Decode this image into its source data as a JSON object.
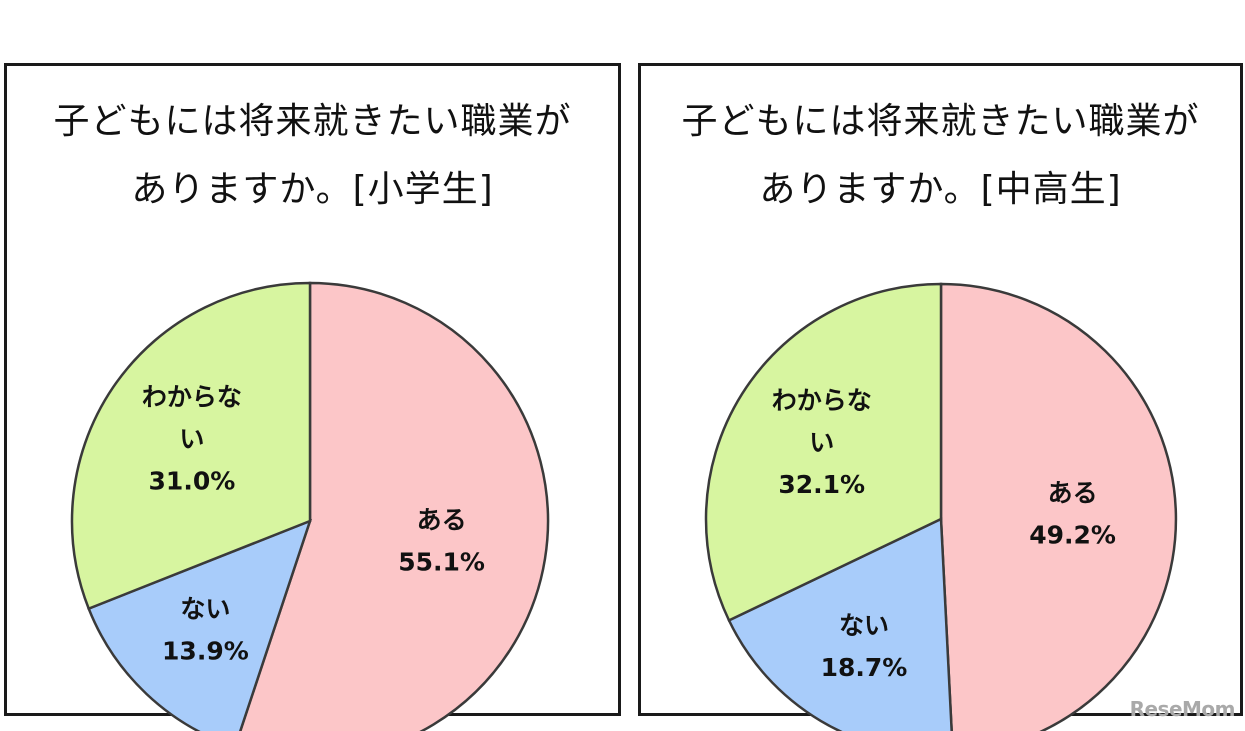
{
  "chart_data": [
    {
      "type": "pie",
      "title_lines": [
        "子どもには将来就きたい職業が",
        "ありますか。[小学生]"
      ],
      "slices": [
        {
          "label_lines": [
            "ある"
          ],
          "value_text": "55.1%",
          "value": 55.1,
          "color": "#fcc6c8"
        },
        {
          "label_lines": [
            "ない"
          ],
          "value_text": "13.9%",
          "value": 13.9,
          "color": "#a8ccfa"
        },
        {
          "label_lines": [
            "わからな",
            "い"
          ],
          "value_text": "31.0%",
          "value": 31.0,
          "color": "#d7f5a0"
        }
      ]
    },
    {
      "type": "pie",
      "title_lines": [
        "子どもには将来就きたい職業が",
        "ありますか。[中高生]"
      ],
      "slices": [
        {
          "label_lines": [
            "ある"
          ],
          "value_text": "49.2%",
          "value": 49.2,
          "color": "#fcc6c8"
        },
        {
          "label_lines": [
            "ない"
          ],
          "value_text": "18.7%",
          "value": 18.7,
          "color": "#a8ccfa"
        },
        {
          "label_lines": [
            "わからな",
            "い"
          ],
          "value_text": "32.1%",
          "value": 32.1,
          "color": "#d7f5a0"
        }
      ]
    }
  ],
  "watermark": "ReseMom"
}
